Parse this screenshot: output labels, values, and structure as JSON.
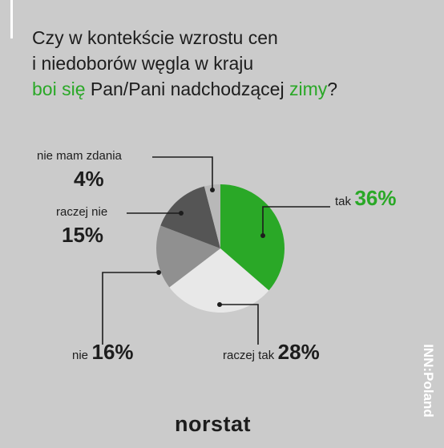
{
  "title": {
    "line1": "Czy w kontekście wzrostu cen",
    "line2": "i niedoborów węgla w kraju",
    "line3_green1": "boi się",
    "line3_mid": " Pan/Pani nadchodzącej ",
    "line3_green2": "zimy",
    "line3_end": "?"
  },
  "chart_data": {
    "type": "pie",
    "slices": [
      {
        "label": "tak",
        "value": 36,
        "value_label": "36%",
        "color": "#2aa827"
      },
      {
        "label": "raczej tak",
        "value": 28,
        "value_label": "28%",
        "color": "#e8e8e8"
      },
      {
        "label": "nie",
        "value": 16,
        "value_label": "16%",
        "color": "#909090"
      },
      {
        "label": "raczej nie",
        "value": 15,
        "value_label": "15%",
        "color": "#555555"
      },
      {
        "label": "nie mam zdania",
        "value": 4,
        "value_label": "4%",
        "color": "#b8b8b8"
      }
    ]
  },
  "brand": "norstat",
  "side_logo": "INN:Poland"
}
